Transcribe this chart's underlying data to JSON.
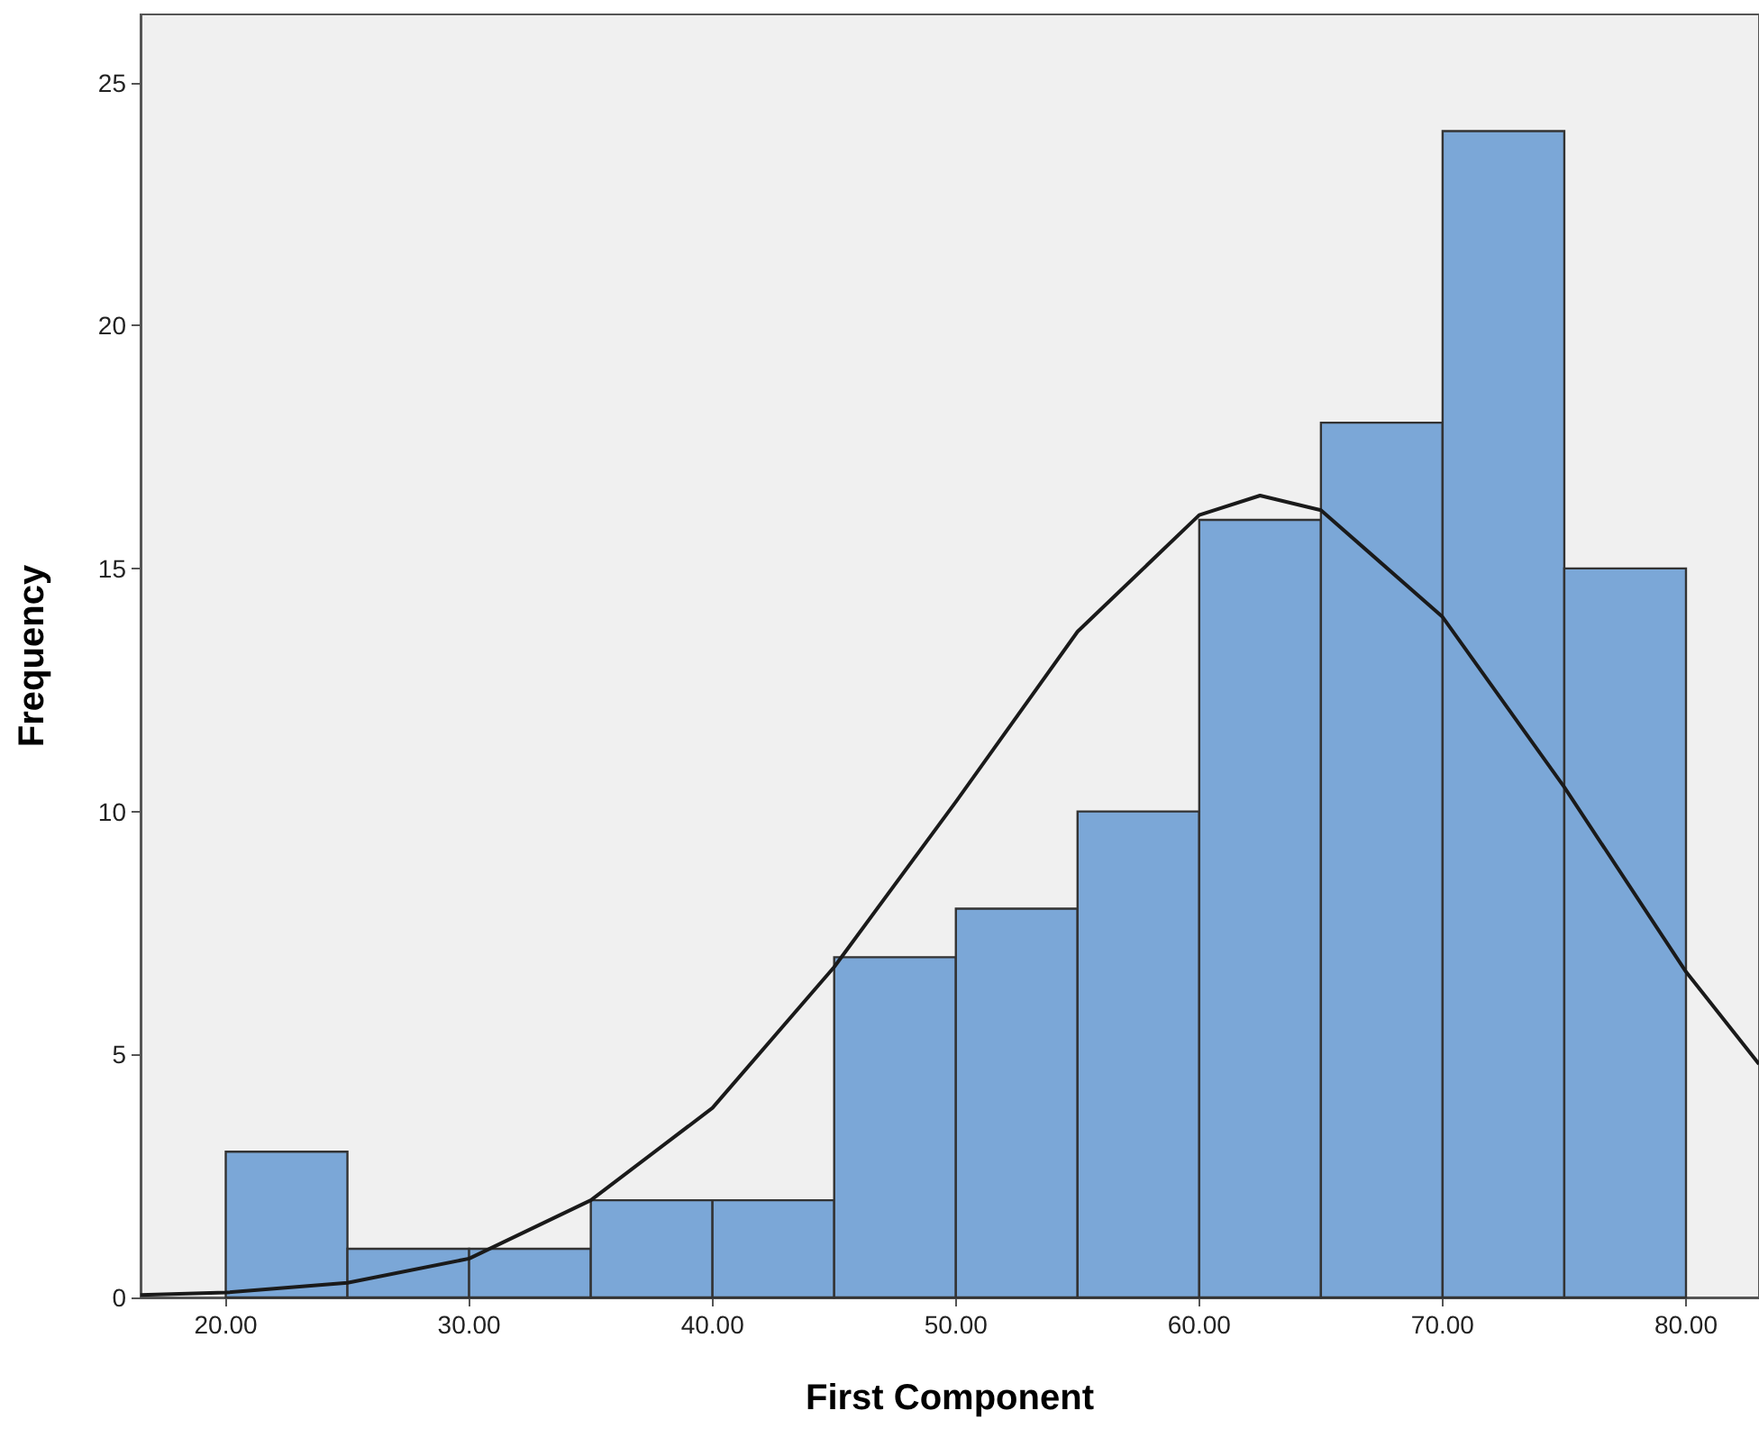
{
  "chart_data": {
    "type": "histogram",
    "xlabel": "First Component",
    "ylabel": "Frequency",
    "bins": [
      20,
      25,
      30,
      35,
      40,
      45,
      50,
      55,
      60,
      65,
      70,
      75,
      80
    ],
    "values": [
      3,
      1,
      1,
      2,
      2,
      7,
      8,
      10,
      16,
      18,
      24,
      15
    ],
    "color": "#7ba7d7",
    "series": [
      {
        "type": "line",
        "color": "#1a1a1a",
        "x": [
          16.5,
          20,
          25,
          30,
          35,
          40,
          45,
          50,
          55,
          60,
          62.5,
          65,
          70,
          75,
          80,
          83
        ],
        "values": [
          0.05,
          0.1,
          0.3,
          0.8,
          2.0,
          3.9,
          6.8,
          10.2,
          13.7,
          16.1,
          16.5,
          16.2,
          14.0,
          10.5,
          6.7,
          4.8
        ]
      }
    ],
    "xlim": [
      16.5,
      83
    ],
    "ylim": [
      0,
      26.4
    ],
    "xticks": [
      {
        "value": 20,
        "label": "20.00"
      },
      {
        "value": 30,
        "label": "30.00"
      },
      {
        "value": 40,
        "label": "40.00"
      },
      {
        "value": 50,
        "label": "50.00"
      },
      {
        "value": 60,
        "label": "60.00"
      },
      {
        "value": 70,
        "label": "70.00"
      },
      {
        "value": 80,
        "label": "80.00"
      }
    ],
    "yticks": [
      0,
      5,
      10,
      15,
      20,
      25
    ],
    "grid": false
  }
}
